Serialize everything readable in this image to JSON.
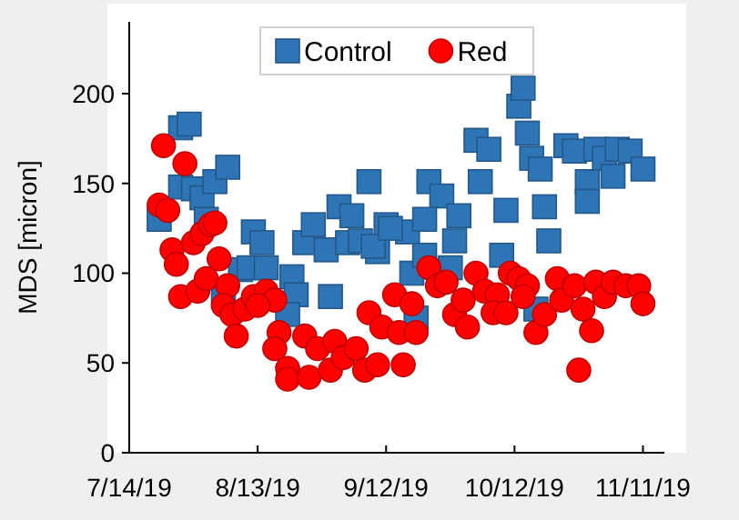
{
  "chart_data": {
    "type": "scatter",
    "ylabel": "MDS [micron]",
    "xlim": [
      "2019-07-14",
      "2019-11-16"
    ],
    "ylim": [
      0,
      240
    ],
    "xticks": [
      {
        "value": "2019-07-14",
        "label": "7/14/19"
      },
      {
        "value": "2019-08-13",
        "label": "8/13/19"
      },
      {
        "value": "2019-09-12",
        "label": "9/12/19"
      },
      {
        "value": "2019-10-12",
        "label": "10/12/19"
      },
      {
        "value": "2019-11-11",
        "label": "11/11/19"
      }
    ],
    "yticks": [
      0,
      50,
      100,
      150,
      200
    ],
    "grid": false,
    "legend": "top",
    "series": [
      {
        "name": "Control",
        "color": "#2e75b6",
        "marker": "square",
        "x": [
          "2019-07-21",
          "2019-07-26",
          "2019-07-28",
          "2019-07-26",
          "2019-07-29",
          "2019-07-31",
          "2019-08-03",
          "2019-08-06",
          "2019-08-01",
          "2019-08-09",
          "2019-08-12",
          "2019-08-14",
          "2019-08-11",
          "2019-08-15",
          "2019-08-21",
          "2019-08-22",
          "2019-08-05",
          "2019-08-20",
          "2019-08-30",
          "2019-08-24",
          "2019-08-26",
          "2019-09-01",
          "2019-09-04",
          "2019-08-29",
          "2019-09-03",
          "2019-09-06",
          "2019-09-08",
          "2019-09-10",
          "2019-09-12",
          "2019-09-17",
          "2019-09-09",
          "2019-09-13",
          "2019-09-18",
          "2019-09-21",
          "2019-09-22",
          "2019-09-25",
          "2019-09-21",
          "2019-09-29",
          "2019-09-28",
          "2019-09-27",
          "2019-09-19",
          "2019-10-03",
          "2019-10-06",
          "2019-10-04",
          "2019-10-10",
          "2019-10-09",
          "2019-10-13",
          "2019-10-14",
          "2019-10-15",
          "2019-10-16",
          "2019-10-19",
          "2019-10-20",
          "2019-10-18",
          "2019-10-24",
          "2019-10-26",
          "2019-10-29",
          "2019-10-31",
          "2019-11-02",
          "2019-11-05",
          "2019-11-08",
          "2019-11-11",
          "2019-10-29",
          "2019-11-04",
          "2019-10-17"
        ],
        "values": [
          130,
          181,
          183,
          148,
          147,
          142,
          151,
          159,
          130,
          102,
          123,
          117,
          103,
          103,
          98,
          88,
          87,
          77,
          87,
          117,
          127,
          137,
          132,
          113,
          117,
          118,
          151,
          112,
          127,
          123,
          115,
          125,
          100,
          110,
          151,
          143,
          130,
          132,
          118,
          103,
          75,
          174,
          169,
          151,
          135,
          110,
          193,
          203,
          178,
          164,
          137,
          118,
          158,
          171,
          168,
          151,
          169,
          164,
          169,
          168,
          158,
          140,
          154,
          80
        ]
      },
      {
        "name": "Red",
        "color": "#ff0000",
        "marker": "circle",
        "x": [
          "2019-07-22",
          "2019-07-27",
          "2019-07-21",
          "2019-07-23",
          "2019-07-24",
          "2019-07-25",
          "2019-07-26",
          "2019-07-30",
          "2019-08-01",
          "2019-07-29",
          "2019-07-31",
          "2019-08-02",
          "2019-08-03",
          "2019-08-04",
          "2019-08-06",
          "2019-08-05",
          "2019-08-07",
          "2019-08-08",
          "2019-08-10",
          "2019-08-12",
          "2019-08-15",
          "2019-08-17",
          "2019-08-13",
          "2019-08-18",
          "2019-08-17",
          "2019-08-20",
          "2019-08-20",
          "2019-08-24",
          "2019-08-25",
          "2019-08-27",
          "2019-08-31",
          "2019-08-30",
          "2019-09-02",
          "2019-09-05",
          "2019-09-07",
          "2019-09-10",
          "2019-09-08",
          "2019-09-11",
          "2019-09-14",
          "2019-09-16",
          "2019-09-18",
          "2019-09-15",
          "2019-09-19",
          "2019-09-22",
          "2019-09-24",
          "2019-09-26",
          "2019-09-28",
          "2019-10-01",
          "2019-09-30",
          "2019-10-03",
          "2019-10-05",
          "2019-10-08",
          "2019-10-07",
          "2019-10-10",
          "2019-10-11",
          "2019-10-13",
          "2019-10-15",
          "2019-10-14",
          "2019-10-17",
          "2019-10-19",
          "2019-10-22",
          "2019-10-23",
          "2019-10-26",
          "2019-10-28",
          "2019-10-30",
          "2019-10-27",
          "2019-10-31",
          "2019-11-02",
          "2019-11-04",
          "2019-11-07",
          "2019-11-10",
          "2019-11-11"
        ],
        "values": [
          171,
          161,
          138,
          135,
          113,
          105,
          87,
          90,
          97,
          117,
          122,
          127,
          128,
          108,
          93,
          82,
          77,
          65,
          80,
          87,
          90,
          85,
          82,
          67,
          58,
          47,
          41,
          65,
          42,
          58,
          62,
          46,
          53,
          58,
          46,
          49,
          78,
          70,
          88,
          49,
          83,
          67,
          67,
          103,
          93,
          95,
          77,
          70,
          85,
          100,
          90,
          88,
          78,
          78,
          100,
          97,
          93,
          87,
          67,
          77,
          97,
          85,
          93,
          80,
          68,
          46,
          95,
          87,
          95,
          93,
          93,
          83
        ]
      }
    ]
  }
}
